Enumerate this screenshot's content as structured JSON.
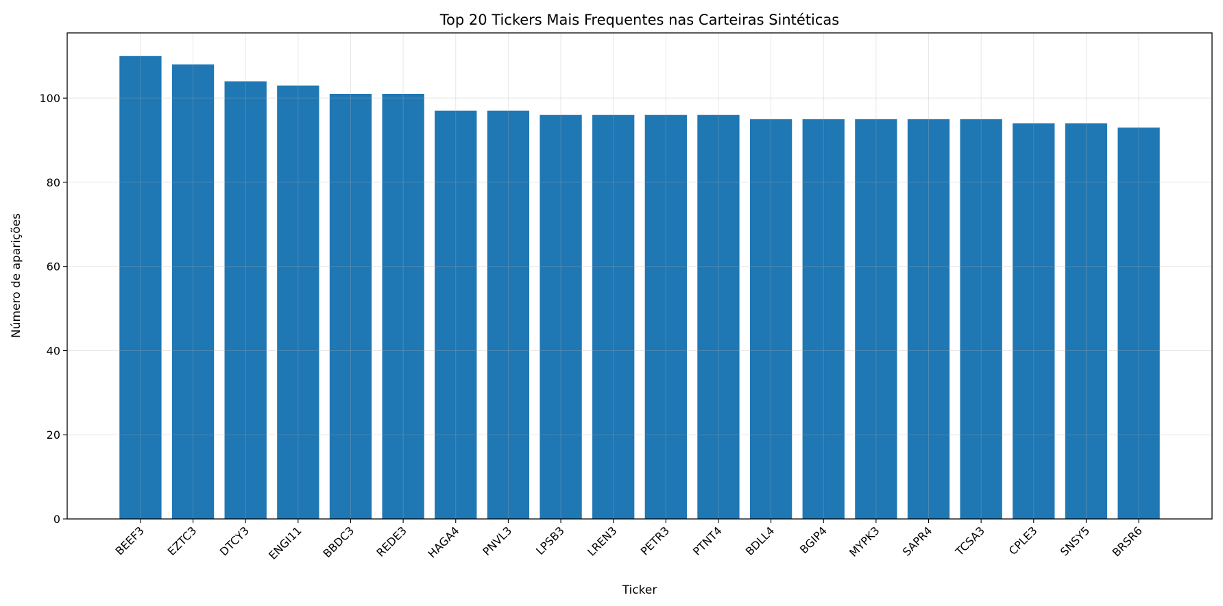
{
  "chart_data": {
    "type": "bar",
    "title": "Top 20 Tickers Mais Frequentes nas Carteiras Sintéticas",
    "xlabel": "Ticker",
    "ylabel": "Número de aparições",
    "categories": [
      "BEEF3",
      "EZTC3",
      "DTCY3",
      "ENGI11",
      "BBDC3",
      "REDE3",
      "HAGA4",
      "PNVL3",
      "LPSB3",
      "LREN3",
      "PETR3",
      "PTNT4",
      "BDLL4",
      "BGIP4",
      "MYPK3",
      "SAPR4",
      "TCSA3",
      "CPLE3",
      "SNSY5",
      "BRSR6"
    ],
    "values": [
      110,
      108,
      104,
      103,
      101,
      101,
      97,
      97,
      96,
      96,
      96,
      96,
      95,
      95,
      95,
      95,
      95,
      94,
      94,
      93
    ],
    "ylim": [
      0,
      115.5
    ],
    "yticks": [
      "0",
      "20",
      "40",
      "60",
      "80",
      "100"
    ],
    "grid": true,
    "bar_color": "#1f77b4"
  }
}
